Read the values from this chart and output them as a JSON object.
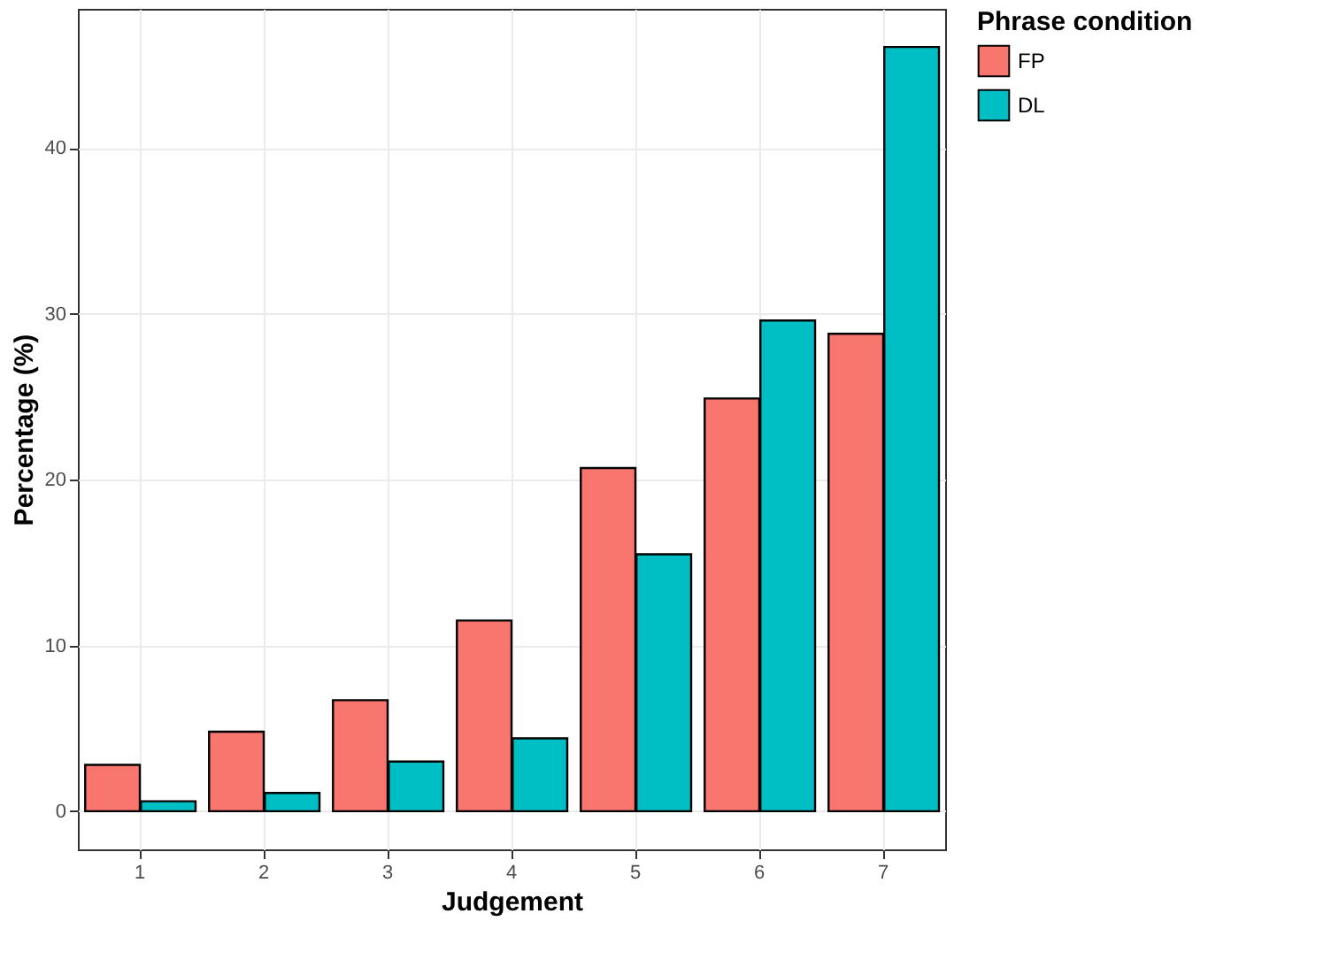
{
  "chart_data": {
    "type": "bar",
    "xlabel": "Judgement",
    "ylabel": "Percentage (%)",
    "legend_title": "Phrase condition",
    "legend": "right",
    "grid": true,
    "categories": [
      "1",
      "2",
      "3",
      "4",
      "5",
      "6",
      "7"
    ],
    "series": [
      {
        "name": "FP",
        "color": "#f8766d",
        "values": [
          2.8,
          4.8,
          6.7,
          11.5,
          20.7,
          24.9,
          28.8
        ]
      },
      {
        "name": "DL",
        "color": "#00bfc4",
        "values": [
          0.6,
          1.1,
          3.0,
          4.4,
          15.5,
          29.6,
          46.1
        ]
      }
    ],
    "ylim": [
      -2.3,
      48.4
    ],
    "yticks": [
      0,
      10,
      20,
      30,
      40
    ]
  }
}
